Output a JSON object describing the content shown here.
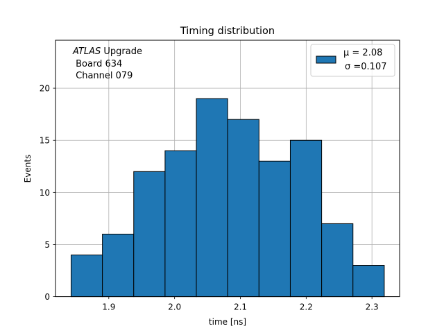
{
  "chart_data": {
    "type": "bar",
    "title": "Timing distribution",
    "xlabel": "time [ns]",
    "ylabel": "Events",
    "bin_edges": [
      1.8427,
      1.8903,
      1.9379,
      1.9855,
      2.0331,
      2.0807,
      2.1283,
      2.1759,
      2.2235,
      2.2711,
      2.3187
    ],
    "values": [
      4,
      6,
      12,
      14,
      19,
      17,
      13,
      15,
      7,
      3
    ],
    "xlim": [
      1.819,
      2.342
    ],
    "ylim": [
      0,
      24.6
    ],
    "xticks": [
      1.9,
      2.0,
      2.1,
      2.2,
      2.3
    ],
    "xtick_labels": [
      "1.9",
      "2.0",
      "2.1",
      "2.2",
      "2.3"
    ],
    "yticks": [
      0,
      5,
      10,
      15,
      20
    ],
    "ytick_labels": [
      "0",
      "5",
      "10",
      "15",
      "20"
    ],
    "grid": true,
    "bar_color": "#1f77b4",
    "edge_color": "#000000",
    "legend": {
      "placement": "top-right",
      "line1": "μ = 2.08",
      "line2": "σ =0.107"
    },
    "annotation": {
      "italic": "ATLAS",
      "rest": " Upgrade",
      "line2": " Board 634",
      "line3": " Channel 079"
    }
  }
}
